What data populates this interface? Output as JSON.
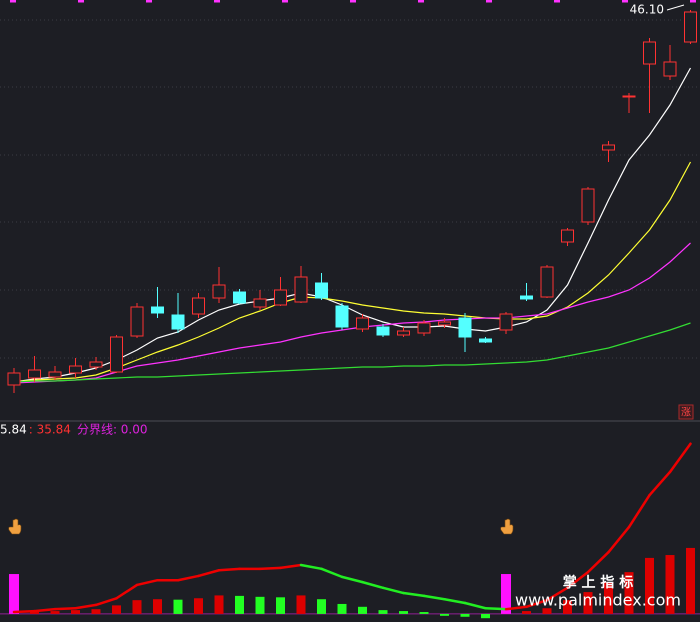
{
  "chart_data": [
    {
      "type": "candlestick",
      "annotation": "46.10",
      "badge": "涨",
      "ylim": [
        5.1,
        47.1
      ],
      "up_color": "#ff3232",
      "down_color": "#54ffff",
      "open": [
        8.6,
        9.3,
        9.4,
        9.8,
        10.4,
        9.9,
        13.5,
        16.4,
        15.6,
        15.7,
        17.3,
        17.9,
        16.4,
        16.6,
        16.9,
        18.8,
        16.5,
        14.2,
        14.4,
        13.6,
        13.8,
        14.6,
        15.3,
        13.2,
        14.1,
        17.5,
        17.4,
        22.9,
        24.9,
        32.1,
        37.4,
        40.7,
        39.5,
        42.9
      ],
      "high": [
        10.3,
        11.5,
        10.5,
        11.3,
        11.4,
        13.6,
        16.8,
        18.4,
        17.8,
        17.8,
        20.4,
        18.2,
        18.1,
        19.4,
        20.5,
        19.8,
        16.8,
        15.7,
        14.7,
        14.4,
        15.1,
        15.3,
        15.8,
        13.4,
        15.9,
        18.8,
        20.6,
        24.3,
        28.4,
        33.0,
        37.8,
        43.3,
        42.6,
        46.1
      ],
      "low": [
        7.8,
        8.9,
        9.1,
        9.3,
        10.1,
        9.8,
        13.3,
        15.3,
        13.8,
        15.3,
        16.8,
        16.7,
        16.1,
        16.5,
        16.8,
        17.1,
        14.1,
        13.9,
        13.4,
        13.4,
        13.5,
        14.3,
        11.9,
        12.8,
        13.7,
        17.0,
        17.3,
        22.5,
        24.6,
        30.9,
        35.8,
        35.8,
        39.1,
        42.7
      ],
      "close": [
        9.8,
        10.1,
        9.9,
        10.5,
        10.9,
        13.4,
        16.4,
        15.8,
        14.2,
        17.3,
        18.6,
        16.8,
        17.2,
        18.1,
        19.4,
        17.3,
        14.4,
        15.3,
        13.6,
        14.0,
        14.8,
        14.9,
        13.4,
        12.9,
        15.7,
        17.2,
        20.4,
        24.1,
        28.2,
        32.6,
        37.5,
        42.9,
        40.9,
        45.9
      ],
      "lines": [
        {
          "color": "#ffffff",
          "values": [
            8.9,
            9.2,
            9.4,
            9.8,
            10.3,
            11.1,
            12.1,
            13.3,
            13.9,
            15.1,
            16.1,
            16.7,
            17.0,
            17.3,
            17.8,
            17.4,
            16.6,
            15.6,
            14.9,
            14.4,
            14.4,
            14.5,
            14.2,
            14.0,
            14.4,
            14.9,
            16.1,
            18.6,
            22.8,
            27.1,
            31.1,
            33.6,
            36.6,
            40.3
          ]
        },
        {
          "color": "#ffff33",
          "values": [
            8.9,
            9.1,
            9.2,
            9.3,
            9.6,
            10.3,
            11.1,
            11.9,
            12.6,
            13.4,
            14.3,
            15.3,
            16.0,
            16.8,
            17.4,
            17.3,
            17.0,
            16.6,
            16.3,
            16.0,
            15.8,
            15.7,
            15.5,
            15.3,
            15.2,
            15.2,
            15.5,
            16.4,
            17.8,
            19.6,
            21.8,
            24.1,
            27.1,
            30.9
          ]
        },
        {
          "color": "#ff33ff",
          "values": [
            8.8,
            8.9,
            9.0,
            9.1,
            9.3,
            9.9,
            10.5,
            10.8,
            11.1,
            11.5,
            11.9,
            12.3,
            12.6,
            12.9,
            13.4,
            13.8,
            14.1,
            14.4,
            14.6,
            14.8,
            14.9,
            15.1,
            15.2,
            15.3,
            15.3,
            15.5,
            15.7,
            16.3,
            16.9,
            17.4,
            18.1,
            19.3,
            20.9,
            22.8
          ]
        },
        {
          "color": "#33dd33",
          "values": [
            8.9,
            9.0,
            9.0,
            9.1,
            9.2,
            9.3,
            9.4,
            9.4,
            9.5,
            9.6,
            9.7,
            9.8,
            9.9,
            10.0,
            10.1,
            10.2,
            10.3,
            10.4,
            10.4,
            10.5,
            10.5,
            10.6,
            10.6,
            10.7,
            10.8,
            10.9,
            11.1,
            11.5,
            11.9,
            12.3,
            12.9,
            13.5,
            14.1,
            14.8
          ]
        }
      ]
    },
    {
      "type": "indicator",
      "labels": [
        {
          "text": "5.84",
          "color": "#ffffff"
        },
        {
          "text": ": 35.84",
          "color": "#ff3232"
        }
      ],
      "ylim": [
        -1.7,
        40
      ],
      "baseline": {
        "value": 0,
        "label": "分界线: 0.00",
        "color": "#dd22dd"
      },
      "line": {
        "up_color": "#ee0000",
        "down_color": "#22ee22",
        "values": [
          0.4,
          0.6,
          1.0,
          1.2,
          1.9,
          3.3,
          6.1,
          7.1,
          7.1,
          8.0,
          9.2,
          9.5,
          9.5,
          9.7,
          10.3,
          9.5,
          7.8,
          6.7,
          5.5,
          4.4,
          3.8,
          3.1,
          2.3,
          1.2,
          1.0,
          1.5,
          2.9,
          5.5,
          8.8,
          13.0,
          18.3,
          25.0,
          29.9,
          35.84
        ]
      },
      "bars": {
        "up_color": "#dd0000",
        "down_color": "#22ff22",
        "values": [
          0.2,
          0.4,
          0.6,
          0.8,
          1.0,
          1.8,
          2.9,
          3.1,
          3.0,
          3.3,
          3.9,
          3.8,
          3.6,
          3.5,
          3.9,
          3.1,
          2.1,
          1.5,
          0.8,
          0.6,
          0.4,
          -0.4,
          -0.6,
          -0.9,
          0.2,
          0.6,
          1.2,
          2.9,
          4.6,
          6.7,
          8.8,
          11.8,
          12.4,
          13.9
        ]
      },
      "signal": {
        "color": "#ff11ff",
        "values": [
          8.4,
          null,
          null,
          null,
          null,
          null,
          null,
          null,
          null,
          null,
          null,
          null,
          null,
          null,
          null,
          null,
          null,
          null,
          null,
          null,
          null,
          null,
          null,
          null,
          8.4,
          null,
          null,
          null,
          null,
          null,
          null,
          null,
          null,
          null
        ]
      }
    }
  ],
  "watermark": {
    "title": "掌 上 指 标",
    "url": "www.palmindex.com"
  }
}
